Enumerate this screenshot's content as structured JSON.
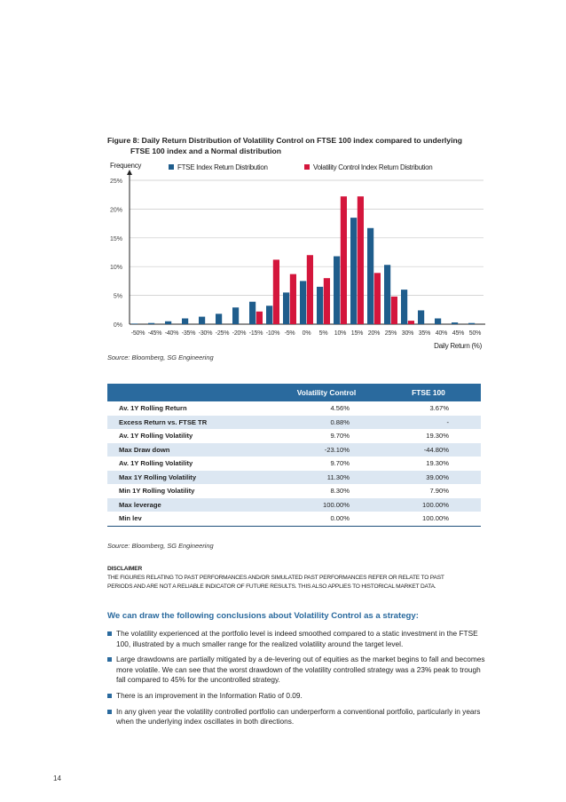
{
  "figure": {
    "title_line1": "Figure 8: Daily Return Distribution of Volatility Control on FTSE 100 index compared to underlying",
    "title_line2": "FTSE 100 index and a Normal distribution"
  },
  "chart_data": {
    "type": "bar",
    "ylabel": "Frequency",
    "xlabel": "Daily Return (%)",
    "ylim": [
      0,
      25
    ],
    "yticks": [
      "0%",
      "5%",
      "10%",
      "15%",
      "20%",
      "25%"
    ],
    "grid": true,
    "legend_position": "top",
    "categories": [
      "-50%",
      "-45%",
      "-40%",
      "-35%",
      "-30%",
      "-25%",
      "-20%",
      "-15%",
      "-10%",
      "-5%",
      "0%",
      "5%",
      "10%",
      "15%",
      "20%",
      "25%",
      "30%",
      "35%",
      "40%",
      "45%",
      "50%"
    ],
    "series": [
      {
        "name": "FTSE Index Return Distribution",
        "color": "#1f5d8c",
        "values": [
          0.1,
          0.2,
          0.5,
          1.0,
          1.3,
          1.8,
          2.9,
          3.9,
          3.2,
          5.5,
          7.5,
          6.5,
          11.8,
          18.5,
          16.7,
          10.3,
          6.0,
          2.4,
          1.0,
          0.3,
          0.2
        ]
      },
      {
        "name": "Volatility Control Index Return Distribution",
        "color": "#d4163c",
        "values": [
          0,
          0,
          0,
          0,
          0,
          0,
          0,
          2.2,
          11.2,
          8.7,
          12.0,
          8.0,
          22.2,
          22.2,
          8.9,
          4.8,
          0.6,
          0,
          0,
          0,
          0
        ]
      }
    ]
  },
  "source1": "Source: Bloomberg, SG Engineering",
  "table": {
    "headers": [
      "",
      "Volatility Control",
      "FTSE 100"
    ],
    "rows": [
      [
        "Av. 1Y Rolling Return",
        "4.56%",
        "3.67%"
      ],
      [
        "Excess Return vs. FTSE TR",
        "0.88%",
        "-"
      ],
      [
        "Av. 1Y Rolling Volatility",
        "9.70%",
        "19.30%"
      ],
      [
        "Max Draw down",
        "-23.10%",
        "-44.80%"
      ],
      [
        "Av. 1Y Rolling Volatility",
        "9.70%",
        "19.30%"
      ],
      [
        "Max 1Y Rolling Volatility",
        "11.30%",
        "39.00%"
      ],
      [
        "Min 1Y Rolling Volatility",
        "8.30%",
        "7.90%"
      ],
      [
        "Max leverage",
        "100.00%",
        "100.00%"
      ],
      [
        "Min lev",
        "0.00%",
        "100.00%"
      ]
    ]
  },
  "source2": "Source: Bloomberg, SG Engineering",
  "disclaimer": {
    "heading": "DISCLAIMER",
    "line1": "THE FIGURES RELATING TO PAST PERFORMANCES AND/OR SIMULATED PAST PERFORMANCES REFER OR RELATE TO PAST",
    "line2": "PERIODS AND ARE NOT A RELIABLE INDICATOR OF FUTURE RESULTS. THIS ALSO APPLIES TO HISTORICAL MARKET DATA."
  },
  "conclusions": {
    "heading": "We can draw the following conclusions about Volatility Control as a strategy:",
    "bullets": [
      "The volatility experienced at the portfolio level is indeed smoothed compared to a static investment in the FTSE 100, illustrated by a much smaller range for the realized volatility around the target level.",
      "Large drawdowns are partially mitigated by a de-levering out of equities as the market begins to fall and becomes more volatile. We can see that the worst drawdown of the volatility controlled strategy was a 23% peak to trough fall compared to 45% for the uncontrolled strategy.",
      "There is an improvement in the Information Ratio of 0.09.",
      "In any given year the volatility controlled portfolio can underperform a conventional portfolio, particularly in years when the underlying index oscillates in both directions."
    ]
  },
  "page_number": "14",
  "colors": {
    "accent": "#2a6a9e",
    "table_alt_row": "#dce7f2"
  }
}
